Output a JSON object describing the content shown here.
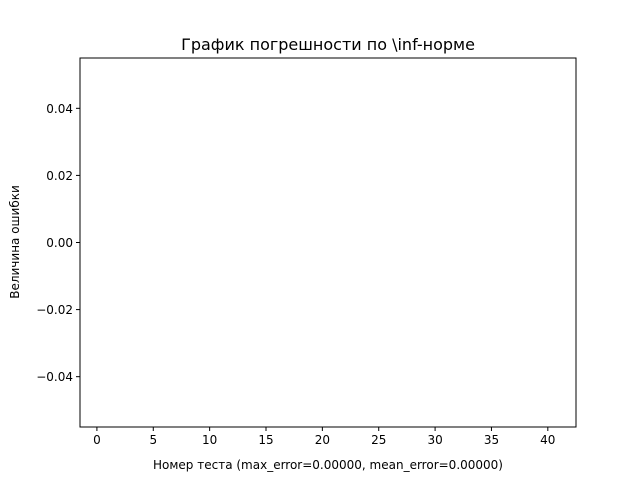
{
  "chart_data": {
    "type": "scatter",
    "title": "График погрешности по \\inf-норме",
    "xlabel": "Номер теста (max_error=0.00000, mean_error=0.00000)",
    "ylabel": "Величина ошибки",
    "xlim": [
      -1.5,
      42.5
    ],
    "ylim": [
      -0.055,
      0.055
    ],
    "xticks": [
      0,
      5,
      10,
      15,
      20,
      25,
      30,
      35,
      40
    ],
    "xtick_labels": [
      "0",
      "5",
      "10",
      "15",
      "20",
      "25",
      "30",
      "35",
      "40"
    ],
    "yticks": [
      0.04,
      0.02,
      0.0,
      -0.02,
      -0.04
    ],
    "ytick_labels": [
      "0.04",
      "0.02",
      "0.00",
      "−0.02",
      "−0.04"
    ],
    "grid": false,
    "series": []
  }
}
